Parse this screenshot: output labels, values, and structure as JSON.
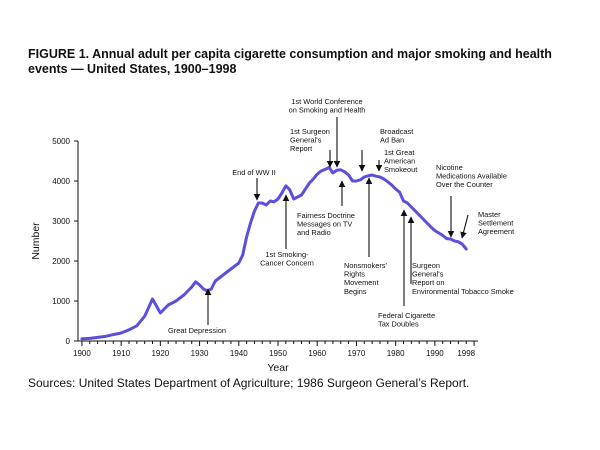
{
  "figure": {
    "title": "FIGURE 1. Annual adult per capita cigarette consumption and major smoking and health events — United States, 1900–1998",
    "source": "Sources: United States Department of Agriculture; 1986 Surgeon General’s Report."
  },
  "chart_data": {
    "type": "line",
    "title": "FIGURE 1. Annual adult per capita cigarette consumption and major smoking and health events — United States, 1900–1998",
    "xlabel": "Year",
    "ylabel": "Number",
    "xlim": [
      1899,
      2001
    ],
    "ylim": [
      0,
      5000
    ],
    "x_ticks": [
      1900,
      1910,
      1920,
      1930,
      1940,
      1950,
      1960,
      1970,
      1980,
      1990,
      1998
    ],
    "y_ticks": [
      0,
      1000,
      2000,
      3000,
      4000,
      5000
    ],
    "grid": false,
    "series_color": "#5b4fe0",
    "series": [
      {
        "x": [
          1900,
          1902,
          1904,
          1906,
          1908,
          1910,
          1912,
          1914,
          1916,
          1918,
          1920,
          1921,
          1922,
          1924,
          1926,
          1928,
          1929,
          1930,
          1931,
          1932,
          1933,
          1934,
          1936,
          1938,
          1940,
          1941,
          1942,
          1943,
          1944,
          1945,
          1946,
          1947,
          1948,
          1949,
          1950,
          1951,
          1952,
          1953,
          1954,
          1955,
          1956,
          1957,
          1958,
          1959,
          1960,
          1961,
          1962,
          1963,
          1964,
          1965,
          1966,
          1967,
          1968,
          1969,
          1970,
          1971,
          1972,
          1973,
          1974,
          1975,
          1976,
          1977,
          1978,
          1979,
          1980,
          1981,
          1982,
          1983,
          1984,
          1985,
          1986,
          1987,
          1988,
          1989,
          1990,
          1991,
          1992,
          1993,
          1994,
          1995,
          1996,
          1997,
          1998
        ],
        "y": [
          54,
          65,
          90,
          115,
          160,
          200,
          280,
          380,
          620,
          1050,
          700,
          800,
          900,
          1000,
          1150,
          1350,
          1480,
          1400,
          1300,
          1250,
          1300,
          1500,
          1650,
          1800,
          1950,
          2150,
          2600,
          2950,
          3250,
          3450,
          3450,
          3400,
          3500,
          3480,
          3550,
          3700,
          3880,
          3780,
          3550,
          3600,
          3650,
          3800,
          3950,
          4050,
          4170,
          4250,
          4290,
          4340,
          4200,
          4270,
          4280,
          4230,
          4150,
          4000,
          4000,
          4030,
          4100,
          4130,
          4150,
          4120,
          4100,
          4050,
          3980,
          3900,
          3800,
          3720,
          3500,
          3450,
          3350,
          3250,
          3150,
          3050,
          2950,
          2850,
          2760,
          2700,
          2640,
          2560,
          2550,
          2500,
          2480,
          2420,
          2300
        ]
      }
    ],
    "annotations": [
      {
        "lines": [
          "Great Depression"
        ],
        "year": 1930
      },
      {
        "lines": [
          "End of WW II"
        ],
        "year": 1945
      },
      {
        "lines": [
          "1st Smoking-",
          "Cancer Concern"
        ],
        "year": 1953
      },
      {
        "lines": [
          "1st World Conference",
          "on Smoking and Health"
        ],
        "year": 1966
      },
      {
        "lines": [
          "1st Surgeon",
          "General's",
          "Report"
        ],
        "year": 1964
      },
      {
        "lines": [
          "Fairness Doctrine",
          "Messages on TV",
          "and Radio"
        ],
        "year": 1968
      },
      {
        "lines": [
          "Broadcast",
          "Ad Ban"
        ],
        "year": 1971
      },
      {
        "lines": [
          "Nonsmokers'",
          "Rights",
          "Movement",
          "Begins"
        ],
        "year": 1973
      },
      {
        "lines": [
          "1st Great",
          "American",
          "Smokeout"
        ],
        "year": 1976
      },
      {
        "lines": [
          "Federal Cigarette",
          "Tax Doubles"
        ],
        "year": 1983
      },
      {
        "lines": [
          "Surgeon",
          "General's",
          "Report on",
          "Environmental Tobacco Smoke"
        ],
        "year": 1986
      },
      {
        "lines": [
          "Nicotine",
          "Medications Available",
          "Over the Counter"
        ],
        "year": 1996
      },
      {
        "lines": [
          "Master",
          "Settlement",
          "Agreement"
        ],
        "year": 1998
      }
    ]
  }
}
